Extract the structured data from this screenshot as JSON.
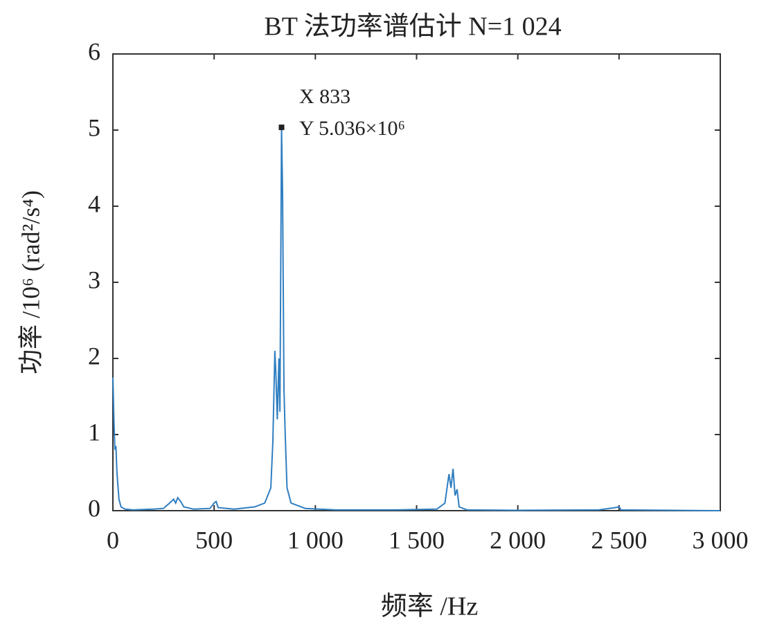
{
  "chart_data": {
    "type": "line",
    "title": "BT 法功率谱估计 N=1 024",
    "x_label": "频率 /Hz",
    "y_label": "功率 /10⁶ (rad²/s⁴)",
    "x": [
      0,
      5,
      10,
      15,
      20,
      30,
      40,
      60,
      100,
      200,
      250,
      280,
      300,
      310,
      320,
      335,
      350,
      400,
      480,
      500,
      510,
      520,
      600,
      700,
      750,
      780,
      790,
      800,
      805,
      812,
      820,
      825,
      833,
      838,
      845,
      850,
      860,
      880,
      950,
      1100,
      1400,
      1600,
      1640,
      1660,
      1670,
      1680,
      1690,
      1700,
      1710,
      1750,
      2000,
      2400,
      2480,
      2500,
      2510,
      3000
    ],
    "series": [
      {
        "color": "#2f7ec1",
        "values": [
          1.75,
          1.2,
          0.8,
          0.85,
          0.5,
          0.15,
          0.05,
          0.02,
          0.01,
          0.02,
          0.03,
          0.1,
          0.15,
          0.1,
          0.17,
          0.12,
          0.05,
          0.02,
          0.03,
          0.1,
          0.12,
          0.04,
          0.02,
          0.05,
          0.1,
          0.3,
          0.9,
          2.1,
          1.8,
          1.2,
          2.0,
          1.3,
          5.036,
          4.2,
          1.6,
          1.1,
          0.3,
          0.1,
          0.03,
          0.01,
          0.01,
          0.02,
          0.1,
          0.48,
          0.3,
          0.55,
          0.2,
          0.28,
          0.05,
          0.01,
          0.005,
          0.01,
          0.04,
          0.05,
          0.01,
          0
        ]
      }
    ],
    "annotation": {
      "x": 833,
      "y": 5.036,
      "x_text": "X 833",
      "y_text": "Y 5.036×10⁶"
    },
    "xlim": [
      0,
      3000
    ],
    "xticks": [
      0,
      500,
      {
        "value": 1000,
        "label": "1 000"
      },
      {
        "value": 1500,
        "label": "1 500"
      },
      {
        "value": 2000,
        "label": "2 000"
      },
      {
        "value": 2500,
        "label": "2 500"
      },
      {
        "value": 3000,
        "label": "3 000"
      }
    ],
    "ylim": [
      0,
      6
    ],
    "yticks": [
      0,
      1,
      2,
      3,
      4,
      5,
      6
    ],
    "grid": false
  }
}
